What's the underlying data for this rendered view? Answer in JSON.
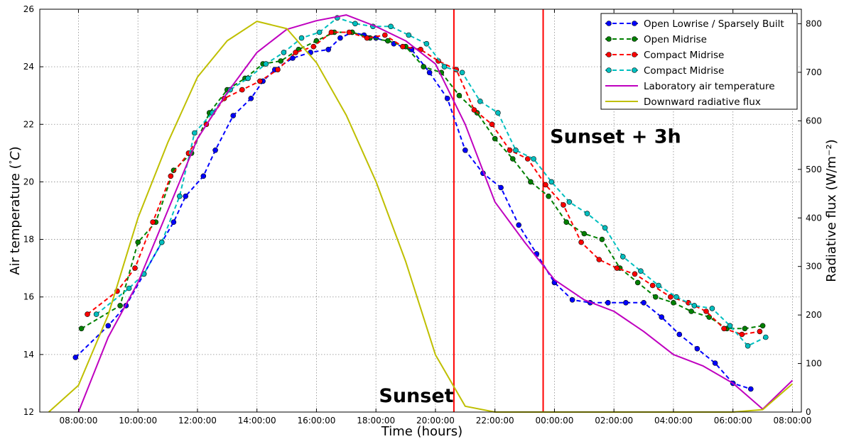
{
  "chart_data": {
    "type": "line",
    "xlabel": "Time (hours)",
    "ylabel": "Air temperature ($^\\circ C$)",
    "ylabel_parts": [
      "Air temperature (",
      "°",
      "C",
      ")"
    ],
    "y2label": "Radiative flux (W/m⁻²)",
    "xlim": [
      6.7,
      32.3
    ],
    "ylim": [
      12,
      26
    ],
    "y2lim": [
      0,
      830
    ],
    "grid": true,
    "legend_position": "top-right",
    "x_ticks": [
      {
        "value": 8,
        "label": "08:00:00"
      },
      {
        "value": 10,
        "label": "10:00:00"
      },
      {
        "value": 12,
        "label": "12:00:00"
      },
      {
        "value": 14,
        "label": "14:00:00"
      },
      {
        "value": 16,
        "label": "16:00:00"
      },
      {
        "value": 18,
        "label": "18:00:00"
      },
      {
        "value": 20,
        "label": "20:00:00"
      },
      {
        "value": 22,
        "label": "22:00:00"
      },
      {
        "value": 24,
        "label": "00:00:00"
      },
      {
        "value": 26,
        "label": "02:00:00"
      },
      {
        "value": 28,
        "label": "04:00:00"
      },
      {
        "value": 30,
        "label": "06:00:00"
      },
      {
        "value": 32,
        "label": "08:00:00"
      }
    ],
    "y_ticks": [
      12,
      14,
      16,
      18,
      20,
      22,
      24,
      26
    ],
    "y2_ticks": [
      0,
      100,
      200,
      300,
      400,
      500,
      600,
      700,
      800
    ],
    "series": [
      {
        "name": "Open Lowrise / Sparsely Built",
        "color": "#0000ff",
        "style": "dashed-markers",
        "axis": "left",
        "x": [
          7.9,
          9.0,
          9.6,
          10.2,
          10.8,
          11.2,
          11.6,
          12.2,
          12.6,
          13.2,
          13.8,
          14.2,
          14.6,
          15.2,
          15.8,
          16.4,
          16.8,
          17.2,
          17.6,
          18.0,
          18.6,
          19.2,
          19.8,
          20.4,
          21.0,
          21.6,
          22.2,
          22.8,
          23.4,
          24.0,
          24.6,
          25.2,
          25.8,
          26.4,
          27.0,
          27.6,
          28.2,
          28.8,
          29.4,
          30.0,
          30.6
        ],
        "y": [
          13.9,
          15.0,
          15.7,
          16.8,
          17.9,
          18.6,
          19.5,
          20.2,
          21.1,
          22.3,
          22.9,
          23.5,
          23.9,
          24.3,
          24.5,
          24.6,
          25.0,
          25.2,
          25.1,
          25.0,
          24.8,
          24.6,
          23.8,
          22.9,
          21.1,
          20.3,
          19.8,
          18.5,
          17.5,
          16.5,
          15.9,
          15.8,
          15.8,
          15.8,
          15.8,
          15.3,
          14.7,
          14.2,
          13.7,
          13.0,
          12.8
        ]
      },
      {
        "name": "Open Midrise",
        "color": "#008000",
        "style": "dashed-markers",
        "axis": "left",
        "x": [
          8.1,
          9.4,
          10.0,
          10.6,
          11.2,
          11.8,
          12.4,
          13.0,
          13.6,
          14.2,
          14.8,
          15.4,
          16.0,
          16.6,
          17.2,
          17.8,
          18.4,
          19.0,
          19.6,
          20.2,
          20.8,
          21.4,
          22.0,
          22.6,
          23.2,
          23.8,
          24.4,
          25.0,
          25.6,
          26.2,
          26.8,
          27.4,
          28.0,
          28.6,
          29.2,
          29.8,
          30.4,
          31.0
        ],
        "y": [
          14.9,
          15.7,
          17.9,
          18.6,
          20.4,
          21.0,
          22.4,
          23.2,
          23.6,
          24.1,
          24.2,
          24.6,
          24.9,
          25.2,
          25.2,
          25.0,
          24.9,
          24.7,
          24.0,
          23.8,
          23.0,
          22.4,
          21.5,
          20.8,
          20.0,
          19.5,
          18.6,
          18.2,
          18.0,
          17.0,
          16.5,
          16.0,
          15.8,
          15.5,
          15.3,
          14.9,
          14.9,
          15.0
        ]
      },
      {
        "name": "Compact Midrise",
        "color": "#ff0000",
        "style": "dashed-markers",
        "axis": "left",
        "x": [
          8.3,
          9.3,
          9.9,
          10.5,
          11.1,
          11.7,
          12.3,
          12.9,
          13.5,
          14.1,
          14.7,
          15.3,
          15.9,
          16.5,
          17.1,
          17.7,
          18.3,
          18.9,
          19.5,
          20.1,
          20.7,
          21.3,
          21.9,
          22.5,
          23.1,
          23.7,
          24.3,
          24.9,
          25.5,
          26.1,
          26.7,
          27.3,
          27.9,
          28.5,
          29.1,
          29.7,
          30.3,
          30.9
        ],
        "y": [
          15.4,
          16.2,
          17.0,
          18.6,
          20.2,
          21.0,
          22.0,
          22.9,
          23.2,
          23.5,
          23.9,
          24.5,
          24.7,
          25.2,
          25.2,
          25.0,
          25.1,
          24.7,
          24.6,
          24.2,
          23.9,
          22.5,
          22.0,
          21.1,
          20.8,
          19.9,
          19.2,
          17.9,
          17.3,
          17.0,
          16.8,
          16.4,
          16.0,
          15.8,
          15.5,
          14.9,
          14.7,
          14.8
        ]
      },
      {
        "name": "Compact Midrise",
        "color": "#00bfbf",
        "style": "dashed-markers",
        "axis": "left",
        "x": [
          8.6,
          9.7,
          10.2,
          10.8,
          11.4,
          11.9,
          12.5,
          13.1,
          13.7,
          14.3,
          14.9,
          15.5,
          16.1,
          16.7,
          17.3,
          17.9,
          18.5,
          19.1,
          19.7,
          20.3,
          20.9,
          21.5,
          22.1,
          22.7,
          23.3,
          23.9,
          24.5,
          25.1,
          25.7,
          26.3,
          26.9,
          27.5,
          28.1,
          28.7,
          29.3,
          29.9,
          30.5,
          31.1
        ],
        "y": [
          15.4,
          16.3,
          16.8,
          17.9,
          19.5,
          21.7,
          22.4,
          23.2,
          23.6,
          24.1,
          24.5,
          25.0,
          25.2,
          25.7,
          25.5,
          25.4,
          25.4,
          25.1,
          24.8,
          24.0,
          23.8,
          22.8,
          22.4,
          21.1,
          20.8,
          20.0,
          19.3,
          18.9,
          18.4,
          17.4,
          16.9,
          16.4,
          16.0,
          15.7,
          15.6,
          15.0,
          14.3,
          14.6
        ]
      },
      {
        "name": "Laboratory air temperature",
        "color": "#bf00bf",
        "style": "solid",
        "axis": "left",
        "x": [
          8,
          9,
          10,
          11,
          12,
          13,
          14,
          15,
          16,
          17,
          18,
          19,
          20,
          21,
          22,
          23,
          24,
          25,
          26,
          27,
          28,
          29,
          30,
          31,
          32
        ],
        "y": [
          12.0,
          14.6,
          16.5,
          19.0,
          21.5,
          23.1,
          24.5,
          25.3,
          25.6,
          25.8,
          25.4,
          24.9,
          24.1,
          22.0,
          19.3,
          17.9,
          16.6,
          15.9,
          15.5,
          14.8,
          14.0,
          13.6,
          13.0,
          12.1,
          13.1
        ]
      },
      {
        "name": "Downward radiative flux",
        "color": "#bfbf00",
        "style": "solid",
        "axis": "right",
        "x": [
          7,
          8,
          9,
          10,
          11,
          12,
          13,
          14,
          15,
          16,
          17,
          18,
          19,
          20,
          21,
          22,
          23,
          24,
          25,
          26,
          27,
          28,
          29,
          30,
          31,
          32
        ],
        "y": [
          0,
          55,
          200,
          400,
          555,
          690,
          765,
          805,
          790,
          720,
          612,
          475,
          310,
          118,
          12,
          0,
          0,
          0,
          0,
          0,
          0,
          0,
          0,
          0,
          5,
          58
        ]
      }
    ],
    "vlines": [
      {
        "x": 20.62,
        "color": "#ff0000"
      },
      {
        "x": 23.62,
        "color": "#ff0000"
      }
    ],
    "annotations": [
      {
        "text": "Sunset",
        "x": 18.1,
        "y": 12.35
      },
      {
        "text": "Sunset  +  3h",
        "x": 23.85,
        "y": 21.35
      }
    ]
  }
}
